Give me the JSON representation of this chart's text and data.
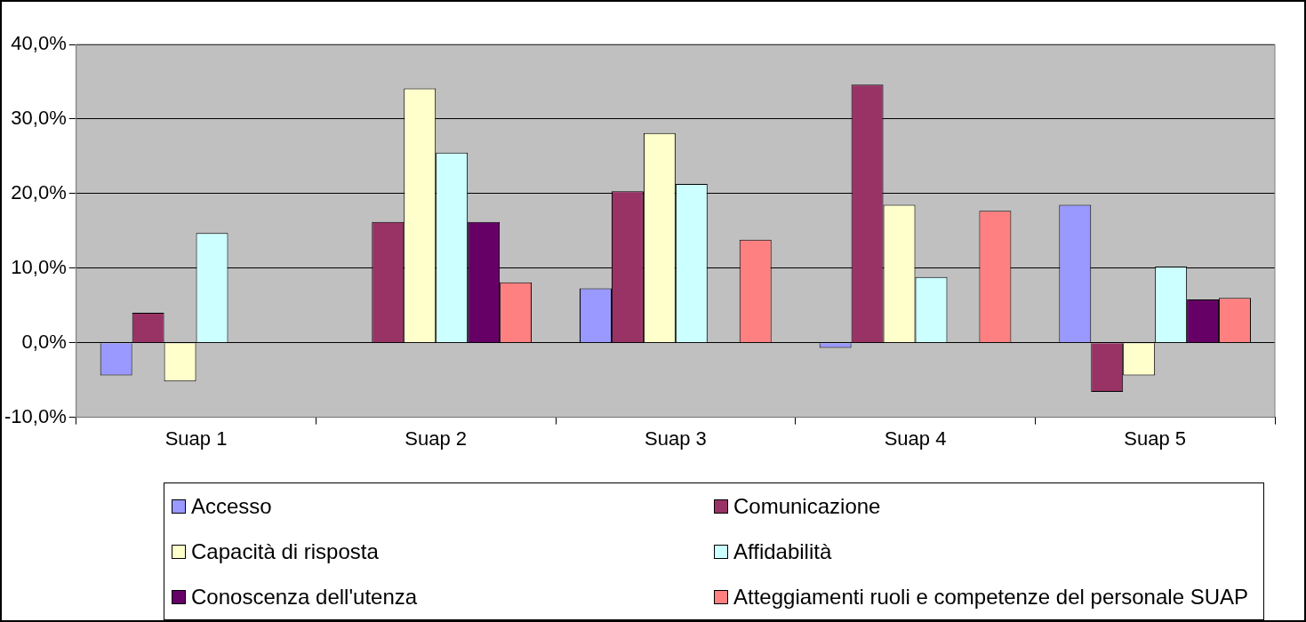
{
  "chart_data": {
    "type": "bar",
    "categories": [
      "Suap 1",
      "Suap 2",
      "Suap 3",
      "Suap 4",
      "Suap 5"
    ],
    "series": [
      {
        "name": "Accesso",
        "color": "#9999ff",
        "values": [
          -4.4,
          null,
          7.3,
          -0.7,
          18.5
        ]
      },
      {
        "name": "Comunicazione",
        "color": "#993366",
        "values": [
          4.0,
          16.2,
          20.3,
          34.6,
          -6.6
        ]
      },
      {
        "name": "Capacità di risposta",
        "color": "#ffffcc",
        "values": [
          -5.2,
          34.1,
          28.1,
          18.5,
          -4.4
        ]
      },
      {
        "name": "Affidabilità",
        "color": "#ccffff",
        "values": [
          14.7,
          25.5,
          21.3,
          8.8,
          10.2
        ]
      },
      {
        "name": "Conoscenza dell'utenza",
        "color": "#660066",
        "values": [
          null,
          16.2,
          null,
          null,
          5.8
        ]
      },
      {
        "name": "Atteggiamenti ruoli e competenze del personale SUAP",
        "color": "#ff8080",
        "values": [
          null,
          8.1,
          13.8,
          17.7,
          6.0
        ]
      }
    ],
    "ylim": [
      -10,
      40
    ],
    "yticks": [
      {
        "value": -10,
        "label": "-10,0%"
      },
      {
        "value": 0,
        "label": "0,0%"
      },
      {
        "value": 10,
        "label": "10,0%"
      },
      {
        "value": 20,
        "label": "20,0%"
      },
      {
        "value": 30,
        "label": "30,0%"
      },
      {
        "value": 40,
        "label": "40,0%"
      }
    ],
    "grid": "y",
    "legend": "bottom"
  }
}
